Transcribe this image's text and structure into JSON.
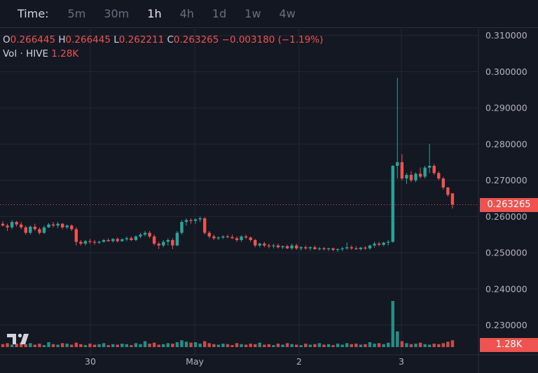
{
  "toolbar": {
    "time_label": "Time:",
    "timeframes": [
      "5m",
      "30m",
      "1h",
      "4h",
      "1d",
      "1w",
      "4w"
    ],
    "active": "1h"
  },
  "legend": {
    "o_label": "O",
    "o_value": "0.266445",
    "h_label": "H",
    "h_value": "0.266445",
    "l_label": "L",
    "l_value": "0.262211",
    "c_label": "C",
    "c_value": "0.263265",
    "change": "−0.003180 (−1.19%)",
    "vol_label": "Vol · HIVE",
    "vol_value": "1.28K"
  },
  "last_price_label": "0.263265",
  "last_volume_label": "1.28K",
  "colors": {
    "up": "#26a69a",
    "down": "#ef5350",
    "background": "#141823",
    "grid": "#232733"
  },
  "chart_data": {
    "type": "candlestick",
    "x_ticks": [
      "30",
      "May",
      "2",
      "3"
    ],
    "y_ticks": [
      "0.310000",
      "0.300000",
      "0.290000",
      "0.280000",
      "0.270000",
      "0.260000",
      "0.250000",
      "0.240000",
      "0.230000"
    ],
    "y_range": [
      0.2235,
      0.3133
    ],
    "last_price": 0.263265,
    "last_volume": "1.28K",
    "volume_peak": 0.0094,
    "candles": [
      [
        0.258,
        0.2587,
        0.2572,
        0.2575
      ],
      [
        0.2575,
        0.258,
        0.256,
        0.257
      ],
      [
        0.257,
        0.259,
        0.2565,
        0.2585
      ],
      [
        0.2585,
        0.2588,
        0.2572,
        0.2578
      ],
      [
        0.2578,
        0.2585,
        0.2565,
        0.257
      ],
      [
        0.257,
        0.2575,
        0.255,
        0.2555
      ],
      [
        0.2555,
        0.2575,
        0.255,
        0.2572
      ],
      [
        0.2572,
        0.258,
        0.256,
        0.2565
      ],
      [
        0.2565,
        0.257,
        0.255,
        0.2555
      ],
      [
        0.2555,
        0.2575,
        0.2552,
        0.257
      ],
      [
        0.257,
        0.2582,
        0.2568,
        0.2578
      ],
      [
        0.2578,
        0.2585,
        0.257,
        0.2575
      ],
      [
        0.2575,
        0.2585,
        0.2568,
        0.258
      ],
      [
        0.258,
        0.2582,
        0.2565,
        0.257
      ],
      [
        0.257,
        0.2578,
        0.2565,
        0.2575
      ],
      [
        0.2575,
        0.2578,
        0.256,
        0.2565
      ],
      [
        0.2565,
        0.257,
        0.252,
        0.253
      ],
      [
        0.253,
        0.2535,
        0.252,
        0.2525
      ],
      [
        0.2525,
        0.2535,
        0.252,
        0.2532
      ],
      [
        0.2532,
        0.2538,
        0.2525,
        0.253
      ],
      [
        0.253,
        0.2535,
        0.2522,
        0.2528
      ],
      [
        0.2528,
        0.2533,
        0.2524,
        0.253
      ],
      [
        0.253,
        0.2538,
        0.2528,
        0.2535
      ],
      [
        0.2535,
        0.254,
        0.253,
        0.2532
      ],
      [
        0.2532,
        0.254,
        0.2528,
        0.2538
      ],
      [
        0.2538,
        0.2542,
        0.2528,
        0.2532
      ],
      [
        0.2532,
        0.254,
        0.253,
        0.2537
      ],
      [
        0.2537,
        0.2545,
        0.2532,
        0.254
      ],
      [
        0.254,
        0.2545,
        0.2532,
        0.2535
      ],
      [
        0.2535,
        0.2548,
        0.2532,
        0.2545
      ],
      [
        0.2545,
        0.2555,
        0.254,
        0.255
      ],
      [
        0.255,
        0.256,
        0.2545,
        0.2555
      ],
      [
        0.2555,
        0.256,
        0.254,
        0.2545
      ],
      [
        0.2545,
        0.255,
        0.252,
        0.2525
      ],
      [
        0.2525,
        0.253,
        0.251,
        0.252
      ],
      [
        0.252,
        0.2535,
        0.2515,
        0.253
      ],
      [
        0.253,
        0.254,
        0.252,
        0.2535
      ],
      [
        0.2535,
        0.254,
        0.251,
        0.252
      ],
      [
        0.252,
        0.256,
        0.2518,
        0.2555
      ],
      [
        0.2555,
        0.259,
        0.255,
        0.2585
      ],
      [
        0.2585,
        0.2595,
        0.2575,
        0.259
      ],
      [
        0.259,
        0.2595,
        0.258,
        0.2588
      ],
      [
        0.2588,
        0.2595,
        0.258,
        0.2592
      ],
      [
        0.2592,
        0.26,
        0.2585,
        0.2595
      ],
      [
        0.2595,
        0.2598,
        0.255,
        0.2555
      ],
      [
        0.2555,
        0.256,
        0.254,
        0.2545
      ],
      [
        0.2545,
        0.255,
        0.2535,
        0.254
      ],
      [
        0.254,
        0.2545,
        0.2535,
        0.2542
      ],
      [
        0.2542,
        0.2548,
        0.2538,
        0.2545
      ],
      [
        0.2545,
        0.255,
        0.254,
        0.2543
      ],
      [
        0.2543,
        0.255,
        0.2538,
        0.254
      ],
      [
        0.254,
        0.2545,
        0.253,
        0.2535
      ],
      [
        0.2535,
        0.2548,
        0.253,
        0.2545
      ],
      [
        0.2545,
        0.255,
        0.2538,
        0.2542
      ],
      [
        0.2542,
        0.2545,
        0.253,
        0.2535
      ],
      [
        0.2535,
        0.2538,
        0.2515,
        0.252
      ],
      [
        0.252,
        0.2528,
        0.2515,
        0.2525
      ],
      [
        0.2525,
        0.253,
        0.2515,
        0.252
      ],
      [
        0.252,
        0.2525,
        0.2512,
        0.2518
      ],
      [
        0.2518,
        0.2525,
        0.2512,
        0.252
      ],
      [
        0.252,
        0.2525,
        0.2512,
        0.2515
      ],
      [
        0.2515,
        0.252,
        0.251,
        0.2518
      ],
      [
        0.2518,
        0.2522,
        0.251,
        0.2512
      ],
      [
        0.2512,
        0.2525,
        0.2508,
        0.252
      ],
      [
        0.252,
        0.2525,
        0.2508,
        0.2512
      ],
      [
        0.2512,
        0.2518,
        0.2506,
        0.2515
      ],
      [
        0.2515,
        0.252,
        0.2508,
        0.2512
      ],
      [
        0.2512,
        0.2518,
        0.2506,
        0.2515
      ],
      [
        0.2515,
        0.252,
        0.2508,
        0.251
      ],
      [
        0.251,
        0.2516,
        0.2506,
        0.2512
      ],
      [
        0.2512,
        0.2516,
        0.2506,
        0.251
      ],
      [
        0.251,
        0.2514,
        0.2505,
        0.2512
      ],
      [
        0.2512,
        0.2514,
        0.2504,
        0.2508
      ],
      [
        0.2508,
        0.2512,
        0.2502,
        0.251
      ],
      [
        0.251,
        0.2516,
        0.2504,
        0.2512
      ],
      [
        0.2512,
        0.2528,
        0.2508,
        0.2515
      ],
      [
        0.2515,
        0.252,
        0.2508,
        0.2512
      ],
      [
        0.2512,
        0.2518,
        0.2508,
        0.251
      ],
      [
        0.251,
        0.2516,
        0.2506,
        0.2514
      ],
      [
        0.2514,
        0.2518,
        0.2508,
        0.2512
      ],
      [
        0.2512,
        0.2522,
        0.2508,
        0.252
      ],
      [
        0.252,
        0.253,
        0.2514,
        0.2525
      ],
      [
        0.2525,
        0.253,
        0.2518,
        0.2522
      ],
      [
        0.2522,
        0.253,
        0.2518,
        0.2528
      ],
      [
        0.2528,
        0.2535,
        0.252,
        0.253
      ],
      [
        0.253,
        0.2742,
        0.2528,
        0.274
      ],
      [
        0.274,
        0.2983,
        0.2705,
        0.275
      ],
      [
        0.275,
        0.2772,
        0.27,
        0.2705
      ],
      [
        0.2705,
        0.272,
        0.269,
        0.2715
      ],
      [
        0.2715,
        0.2725,
        0.2695,
        0.27
      ],
      [
        0.27,
        0.2722,
        0.2695,
        0.2718
      ],
      [
        0.2718,
        0.2735,
        0.2705,
        0.271
      ],
      [
        0.271,
        0.274,
        0.2705,
        0.2735
      ],
      [
        0.2735,
        0.28,
        0.272,
        0.274
      ],
      [
        0.274,
        0.2745,
        0.2715,
        0.272
      ],
      [
        0.272,
        0.2725,
        0.27,
        0.2705
      ],
      [
        0.2705,
        0.271,
        0.2675,
        0.268
      ],
      [
        0.268,
        0.2682,
        0.2655,
        0.266
      ],
      [
        0.2664,
        0.2664,
        0.2622,
        0.2633
      ]
    ],
    "volumes": [
      0.0006,
      0.0008,
      0.0005,
      0.0007,
      0.0009,
      0.0006,
      0.0008,
      0.0005,
      0.0007,
      0.0004,
      0.001,
      0.0006,
      0.0005,
      0.0008,
      0.0007,
      0.0005,
      0.0009,
      0.0006,
      0.0004,
      0.0007,
      0.0005,
      0.0006,
      0.0008,
      0.0004,
      0.0006,
      0.0005,
      0.0007,
      0.0006,
      0.0004,
      0.0008,
      0.0006,
      0.0012,
      0.0007,
      0.0009,
      0.0005,
      0.0006,
      0.0008,
      0.0007,
      0.001,
      0.0014,
      0.0011,
      0.0009,
      0.001,
      0.0007,
      0.0012,
      0.0008,
      0.0006,
      0.0005,
      0.0007,
      0.0006,
      0.0004,
      0.0008,
      0.0006,
      0.0005,
      0.0007,
      0.0006,
      0.0009,
      0.0005,
      0.0006,
      0.0004,
      0.0007,
      0.0005,
      0.0008,
      0.0006,
      0.0005,
      0.0004,
      0.0007,
      0.0005,
      0.0006,
      0.0008,
      0.0005,
      0.0006,
      0.0004,
      0.0007,
      0.0005,
      0.0008,
      0.0006,
      0.0007,
      0.0005,
      0.0006,
      0.001,
      0.0007,
      0.0008,
      0.0006,
      0.0009,
      0.0094,
      0.0032,
      0.0012,
      0.0008,
      0.0006,
      0.0007,
      0.0009,
      0.0006,
      0.0005,
      0.0007,
      0.0006,
      0.0008,
      0.0011,
      0.0014
    ]
  }
}
